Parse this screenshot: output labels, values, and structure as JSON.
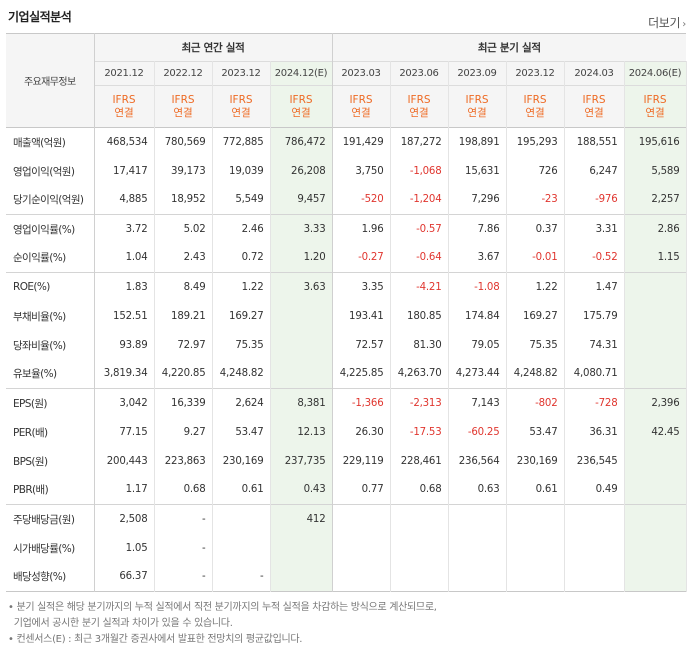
{
  "header": {
    "title": "기업실적분석",
    "more_label": "더보기",
    "more_icon": "chevron-right-icon"
  },
  "colors": {
    "negative": "#e0362f",
    "ifrs": "#ee6a24",
    "estimate_bg": "#edf5eb"
  },
  "table": {
    "row_header_title": "주요재무정보",
    "group_annual": "최근 연간 실적",
    "group_quarter": "최근 분기 실적",
    "periods": [
      "2021.12",
      "2022.12",
      "2023.12",
      "2024.12(E)",
      "2023.03",
      "2023.06",
      "2023.09",
      "2023.12",
      "2024.03",
      "2024.06(E)"
    ],
    "ifrs_top": [
      "IFRS",
      "IFRS",
      "IFRS",
      "IFRS",
      "IFRS",
      "IFRS",
      "IFRS",
      "IFRS",
      "IFRS",
      "IFRS"
    ],
    "ifrs_bottom": [
      "연결",
      "연결",
      "연결",
      "연결",
      "연결",
      "연결",
      "연결",
      "연결",
      "연결",
      "연결"
    ],
    "rows": [
      {
        "label": "매출액(억원)",
        "values": [
          "468,534",
          "780,569",
          "772,885",
          "786,472",
          "191,429",
          "187,272",
          "198,891",
          "195,293",
          "188,551",
          "195,616"
        ]
      },
      {
        "label": "영업이익(억원)",
        "values": [
          "17,417",
          "39,173",
          "19,039",
          "26,208",
          "3,750",
          "-1,068",
          "15,631",
          "726",
          "6,247",
          "5,589"
        ]
      },
      {
        "label": "당기순이익(억원)",
        "values": [
          "4,885",
          "18,952",
          "5,549",
          "9,457",
          "-520",
          "-1,204",
          "7,296",
          "-23",
          "-976",
          "2,257"
        ]
      },
      {
        "label": "영업이익률(%)",
        "values": [
          "3.72",
          "5.02",
          "2.46",
          "3.33",
          "1.96",
          "-0.57",
          "7.86",
          "0.37",
          "3.31",
          "2.86"
        ]
      },
      {
        "label": "순이익률(%)",
        "values": [
          "1.04",
          "2.43",
          "0.72",
          "1.20",
          "-0.27",
          "-0.64",
          "3.67",
          "-0.01",
          "-0.52",
          "1.15"
        ]
      },
      {
        "label": "ROE(%)",
        "values": [
          "1.83",
          "8.49",
          "1.22",
          "3.63",
          "3.35",
          "-4.21",
          "-1.08",
          "1.22",
          "1.47",
          ""
        ]
      },
      {
        "label": "부채비율(%)",
        "values": [
          "152.51",
          "189.21",
          "169.27",
          "",
          "193.41",
          "180.85",
          "174.84",
          "169.27",
          "175.79",
          ""
        ]
      },
      {
        "label": "당좌비율(%)",
        "values": [
          "93.89",
          "72.97",
          "75.35",
          "",
          "72.57",
          "81.30",
          "79.05",
          "75.35",
          "74.31",
          ""
        ]
      },
      {
        "label": "유보율(%)",
        "values": [
          "3,819.34",
          "4,220.85",
          "4,248.82",
          "",
          "4,225.85",
          "4,263.70",
          "4,273.44",
          "4,248.82",
          "4,080.71",
          ""
        ]
      },
      {
        "label": "EPS(원)",
        "values": [
          "3,042",
          "16,339",
          "2,624",
          "8,381",
          "-1,366",
          "-2,313",
          "7,143",
          "-802",
          "-728",
          "2,396"
        ]
      },
      {
        "label": "PER(배)",
        "values": [
          "77.15",
          "9.27",
          "53.47",
          "12.13",
          "26.30",
          "-17.53",
          "-60.25",
          "53.47",
          "36.31",
          "42.45"
        ]
      },
      {
        "label": "BPS(원)",
        "values": [
          "200,443",
          "223,863",
          "230,169",
          "237,735",
          "229,119",
          "228,461",
          "236,564",
          "230,169",
          "236,545",
          ""
        ]
      },
      {
        "label": "PBR(배)",
        "values": [
          "1.17",
          "0.68",
          "0.61",
          "0.43",
          "0.77",
          "0.68",
          "0.63",
          "0.61",
          "0.49",
          ""
        ]
      },
      {
        "label": "주당배당금(원)",
        "values": [
          "2,508",
          "-",
          "",
          "412",
          "",
          "",
          "",
          "",
          "",
          ""
        ]
      },
      {
        "label": "시가배당률(%)",
        "values": [
          "1.05",
          "-",
          "",
          "",
          "",
          "",
          "",
          "",
          "",
          ""
        ]
      },
      {
        "label": "배당성향(%)",
        "values": [
          "66.37",
          "-",
          "-",
          "",
          "",
          "",
          "",
          "",
          "",
          ""
        ]
      }
    ]
  },
  "footnotes": [
    "• 분기 실적은 해당 분기까지의 누적 실적에서 직전 분기까지의 누적 실적을 차감하는 방식으로 계산되므로,",
    "  기업에서 공시한 분기 실적과 차이가 있을 수 있습니다.",
    "• 컨센서스(E) : 최근 3개월간 증권사에서 발표한 전망치의 평균값입니다."
  ]
}
